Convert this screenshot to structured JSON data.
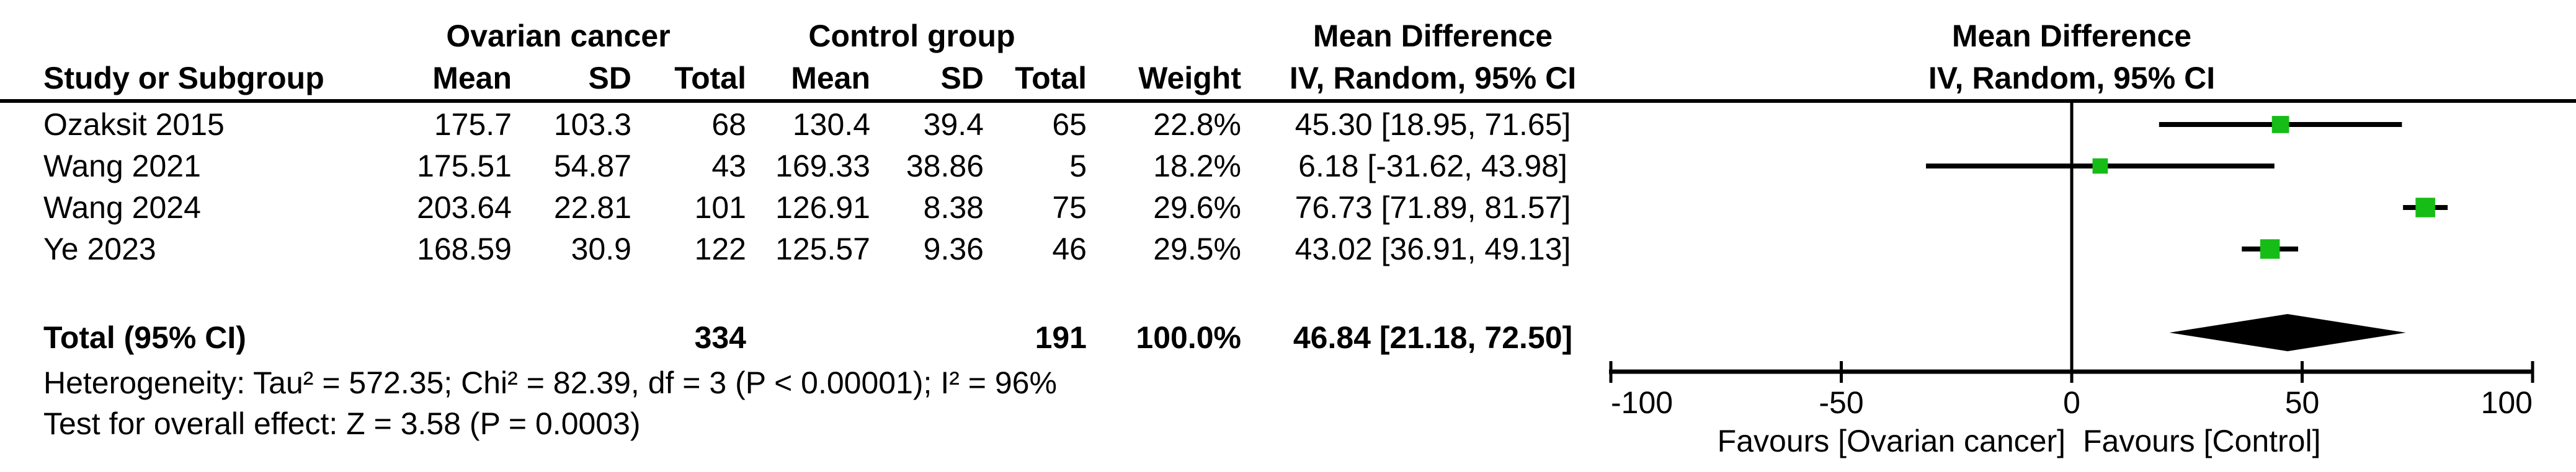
{
  "table": {
    "group1_header": "Ovarian cancer",
    "group2_header": "Control group",
    "col_headers": {
      "study": "Study or Subgroup",
      "mean": "Mean",
      "sd": "SD",
      "total": "Total",
      "weight": "Weight"
    },
    "effect_header_line1": "Mean Difference",
    "effect_header_line2": "IV, Random, 95% CI",
    "rows": [
      [
        "Ozaksit 2015",
        "175.7",
        "103.3",
        "68",
        "130.4",
        "39.4",
        "65",
        "22.8%",
        "45.30 [18.95, 71.65]"
      ],
      [
        "Wang 2021",
        "175.51",
        "54.87",
        "43",
        "169.33",
        "38.86",
        "5",
        "18.2%",
        "6.18 [-31.62, 43.98]"
      ],
      [
        "Wang 2024",
        "203.64",
        "22.81",
        "101",
        "126.91",
        "8.38",
        "75",
        "29.6%",
        "76.73 [71.89, 81.57]"
      ],
      [
        "Ye 2023",
        "168.59",
        "30.9",
        "122",
        "125.57",
        "9.36",
        "46",
        "29.5%",
        "43.02 [36.91, 49.13]"
      ]
    ],
    "total_row": [
      "Total (95% CI)",
      "",
      "",
      "334",
      "",
      "",
      "191",
      "100.0%",
      "46.84 [21.18, 72.50]"
    ],
    "footer_line1": "Heterogeneity: Tau² = 572.35; Chi² = 82.39, df = 3 (P < 0.00001); I² = 96%",
    "footer_line2": "Test for overall effect: Z = 3.58 (P = 0.0003)"
  },
  "plot": {
    "header_line1": "Mean Difference",
    "header_line2": "IV, Random, 95% CI",
    "tick_labels": [
      "-100",
      "-50",
      "0",
      "50",
      "100"
    ],
    "favours_left": "Favours [Ovarian cancer]",
    "favours_right": "Favours [Control]"
  },
  "colors": {
    "square": "#16bd16",
    "line": "#000000",
    "diamond": "#000000"
  },
  "chart_data": {
    "type": "forest",
    "title": "Mean Difference, IV, Random, 95% CI",
    "xlim": [
      -100,
      100
    ],
    "x_ticks": [
      -100,
      -50,
      0,
      50,
      100
    ],
    "xlabel_left": "Favours [Ovarian cancer]",
    "xlabel_right": "Favours [Control]",
    "studies": [
      {
        "name": "Ozaksit 2015",
        "exp_mean": 175.7,
        "exp_sd": 103.3,
        "exp_n": 68,
        "ctrl_mean": 130.4,
        "ctrl_sd": 39.4,
        "ctrl_n": 65,
        "weight_pct": 22.8,
        "estimate": 45.3,
        "ci_low": 18.95,
        "ci_high": 71.65
      },
      {
        "name": "Wang 2021",
        "exp_mean": 175.51,
        "exp_sd": 54.87,
        "exp_n": 43,
        "ctrl_mean": 169.33,
        "ctrl_sd": 38.86,
        "ctrl_n": 5,
        "weight_pct": 18.2,
        "estimate": 6.18,
        "ci_low": -31.62,
        "ci_high": 43.98
      },
      {
        "name": "Wang 2024",
        "exp_mean": 203.64,
        "exp_sd": 22.81,
        "exp_n": 101,
        "ctrl_mean": 126.91,
        "ctrl_sd": 8.38,
        "ctrl_n": 75,
        "weight_pct": 29.6,
        "estimate": 76.73,
        "ci_low": 71.89,
        "ci_high": 81.57
      },
      {
        "name": "Ye 2023",
        "exp_mean": 168.59,
        "exp_sd": 30.9,
        "exp_n": 122,
        "ctrl_mean": 125.57,
        "ctrl_sd": 9.36,
        "ctrl_n": 46,
        "weight_pct": 29.5,
        "estimate": 43.02,
        "ci_low": 36.91,
        "ci_high": 49.13
      }
    ],
    "total": {
      "label": "Total (95% CI)",
      "exp_n": 334,
      "ctrl_n": 191,
      "weight_pct": 100.0,
      "estimate": 46.84,
      "ci_low": 21.18,
      "ci_high": 72.5
    },
    "heterogeneity": {
      "tau2": 572.35,
      "chi2": 82.39,
      "df": 3,
      "p": "< 0.00001",
      "i2_pct": 96
    },
    "overall_effect": {
      "z": 3.58,
      "p": "= 0.0003"
    }
  }
}
